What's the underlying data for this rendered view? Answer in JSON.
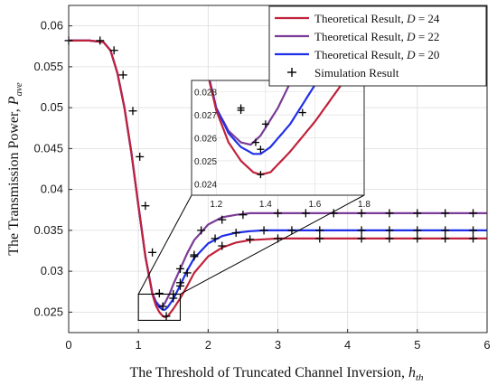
{
  "chart_data": {
    "type": "line",
    "xlabel": "The Threshold of Truncated Channel Inversion, h_th",
    "xlabel_parts": {
      "main": "The Threshold of Truncated Channel Inversion, ",
      "var": "h",
      "sub": "th"
    },
    "ylabel": "The Transmission Power, P_ave",
    "ylabel_parts": {
      "main": "The Transmission Power, ",
      "var": "P",
      "sub": "ave"
    },
    "xlim": [
      0,
      6
    ],
    "ylim": [
      0.0225,
      0.0625
    ],
    "xticks": [
      "0",
      "1",
      "2",
      "3",
      "4",
      "5",
      "6"
    ],
    "yticks": [
      "0.025",
      "0.03",
      "0.035",
      "0.04",
      "0.045",
      "0.05",
      "0.055",
      "0.06"
    ],
    "grid": true,
    "legend_position": "top-right",
    "series": [
      {
        "name": "Theoretical Result, D = 24",
        "name_parts": {
          "main": "Theoretical Result, ",
          "var": "D",
          "val": " = 24"
        },
        "color": "#c0223b",
        "x": [
          0,
          0.3,
          0.5,
          0.6,
          0.7,
          0.8,
          0.9,
          1.0,
          1.1,
          1.2,
          1.25,
          1.3,
          1.35,
          1.38,
          1.42,
          1.5,
          1.6,
          1.7,
          1.8,
          2.0,
          2.2,
          2.4,
          2.6,
          2.8,
          3.0,
          3.5,
          4.0,
          5.0,
          6.0
        ],
        "y": [
          0.0582,
          0.0582,
          0.058,
          0.057,
          0.0542,
          0.05,
          0.0445,
          0.038,
          0.0318,
          0.0272,
          0.0258,
          0.025,
          0.0245,
          0.0244,
          0.0245,
          0.0254,
          0.0267,
          0.0282,
          0.0298,
          0.0318,
          0.0329,
          0.0335,
          0.0338,
          0.0339,
          0.034,
          0.034,
          0.034,
          0.034,
          0.034
        ]
      },
      {
        "name": "Theoretical Result, D = 22",
        "name_parts": {
          "main": "Theoretical Result, ",
          "var": "D",
          "val": " = 22"
        },
        "color": "#7a3c96",
        "x": [
          0,
          0.3,
          0.5,
          0.6,
          0.7,
          0.8,
          0.9,
          1.0,
          1.1,
          1.2,
          1.25,
          1.3,
          1.34,
          1.38,
          1.45,
          1.5,
          1.6,
          1.7,
          1.8,
          2.0,
          2.2,
          2.4,
          2.6,
          2.8,
          3.0,
          3.5,
          4.0,
          5.0,
          6.0
        ],
        "y": [
          0.0582,
          0.0582,
          0.058,
          0.057,
          0.0542,
          0.05,
          0.0445,
          0.038,
          0.0318,
          0.0273,
          0.0263,
          0.0258,
          0.0257,
          0.0261,
          0.0273,
          0.0284,
          0.0303,
          0.0322,
          0.0338,
          0.0357,
          0.0366,
          0.0369,
          0.0371,
          0.0371,
          0.0371,
          0.0371,
          0.0371,
          0.0371,
          0.0371
        ]
      },
      {
        "name": "Theoretical Result, D = 20",
        "name_parts": {
          "main": "Theoretical Result, ",
          "var": "D",
          "val": " = 20"
        },
        "color": "#1f2fe8",
        "x": [
          0,
          0.3,
          0.5,
          0.6,
          0.7,
          0.8,
          0.9,
          1.0,
          1.1,
          1.2,
          1.25,
          1.3,
          1.35,
          1.38,
          1.42,
          1.5,
          1.6,
          1.7,
          1.8,
          2.0,
          2.2,
          2.4,
          2.6,
          2.8,
          3.0,
          3.5,
          4.0,
          5.0,
          6.0
        ],
        "y": [
          0.0582,
          0.0582,
          0.058,
          0.057,
          0.0542,
          0.05,
          0.0445,
          0.038,
          0.0318,
          0.0273,
          0.0262,
          0.0256,
          0.0253,
          0.0253,
          0.0256,
          0.0266,
          0.0283,
          0.0301,
          0.0316,
          0.0334,
          0.0343,
          0.0347,
          0.0349,
          0.035,
          0.035,
          0.035,
          0.035,
          0.035,
          0.035
        ]
      }
    ],
    "simulation": {
      "name": "Simulation Result",
      "marker": "+",
      "color": "#000000",
      "points": [
        [
          0.0,
          0.0582
        ],
        [
          0.45,
          0.0582
        ],
        [
          0.65,
          0.057
        ],
        [
          0.78,
          0.054
        ],
        [
          0.92,
          0.0496
        ],
        [
          1.02,
          0.044
        ],
        [
          1.1,
          0.038
        ],
        [
          1.2,
          0.0323
        ],
        [
          1.3,
          0.0273
        ],
        [
          1.35,
          0.0257
        ],
        [
          1.4,
          0.0245
        ],
        [
          1.5,
          0.0267
        ],
        [
          1.6,
          0.0282
        ],
        [
          1.7,
          0.0298
        ],
        [
          1.8,
          0.0318
        ],
        [
          2.2,
          0.0331
        ],
        [
          2.6,
          0.0339
        ],
        [
          3.0,
          0.034
        ],
        [
          3.6,
          0.034
        ],
        [
          4.2,
          0.034
        ],
        [
          4.6,
          0.034
        ],
        [
          5.0,
          0.034
        ],
        [
          5.4,
          0.034
        ],
        [
          5.8,
          0.034
        ],
        [
          1.5,
          0.0272
        ],
        [
          1.6,
          0.0303
        ],
        [
          1.8,
          0.032
        ],
        [
          2.1,
          0.034
        ],
        [
          2.4,
          0.0347
        ],
        [
          2.8,
          0.035
        ],
        [
          3.2,
          0.035
        ],
        [
          3.6,
          0.035
        ],
        [
          4.2,
          0.035
        ],
        [
          4.6,
          0.035
        ],
        [
          5.0,
          0.035
        ],
        [
          5.4,
          0.035
        ],
        [
          5.8,
          0.035
        ],
        [
          1.6,
          0.0286
        ],
        [
          1.9,
          0.035
        ],
        [
          2.2,
          0.0363
        ],
        [
          2.5,
          0.0369
        ],
        [
          3.0,
          0.0371
        ],
        [
          3.4,
          0.0371
        ],
        [
          3.8,
          0.0371
        ],
        [
          4.2,
          0.0371
        ],
        [
          4.6,
          0.0371
        ],
        [
          5.0,
          0.0371
        ],
        [
          5.4,
          0.0371
        ],
        [
          5.8,
          0.0371
        ]
      ]
    },
    "inset": {
      "xlim": [
        1.1,
        1.8
      ],
      "ylim": [
        0.0235,
        0.0285
      ],
      "xticks": [
        "1.2",
        "1.4",
        "1.6",
        "1.8"
      ],
      "yticks": [
        "0.024",
        "0.025",
        "0.026",
        "0.027",
        "0.028"
      ],
      "zoom_box": {
        "x": [
          1.0,
          1.6
        ],
        "y": [
          0.024,
          0.0272
        ]
      },
      "simulation_points": [
        [
          1.3,
          0.0272
        ],
        [
          1.3,
          0.0273
        ],
        [
          1.36,
          0.0258
        ],
        [
          1.38,
          0.0244
        ],
        [
          1.38,
          0.0255
        ],
        [
          1.4,
          0.0266
        ],
        [
          1.55,
          0.0271
        ],
        [
          1.55,
          0.0284
        ]
      ]
    }
  }
}
